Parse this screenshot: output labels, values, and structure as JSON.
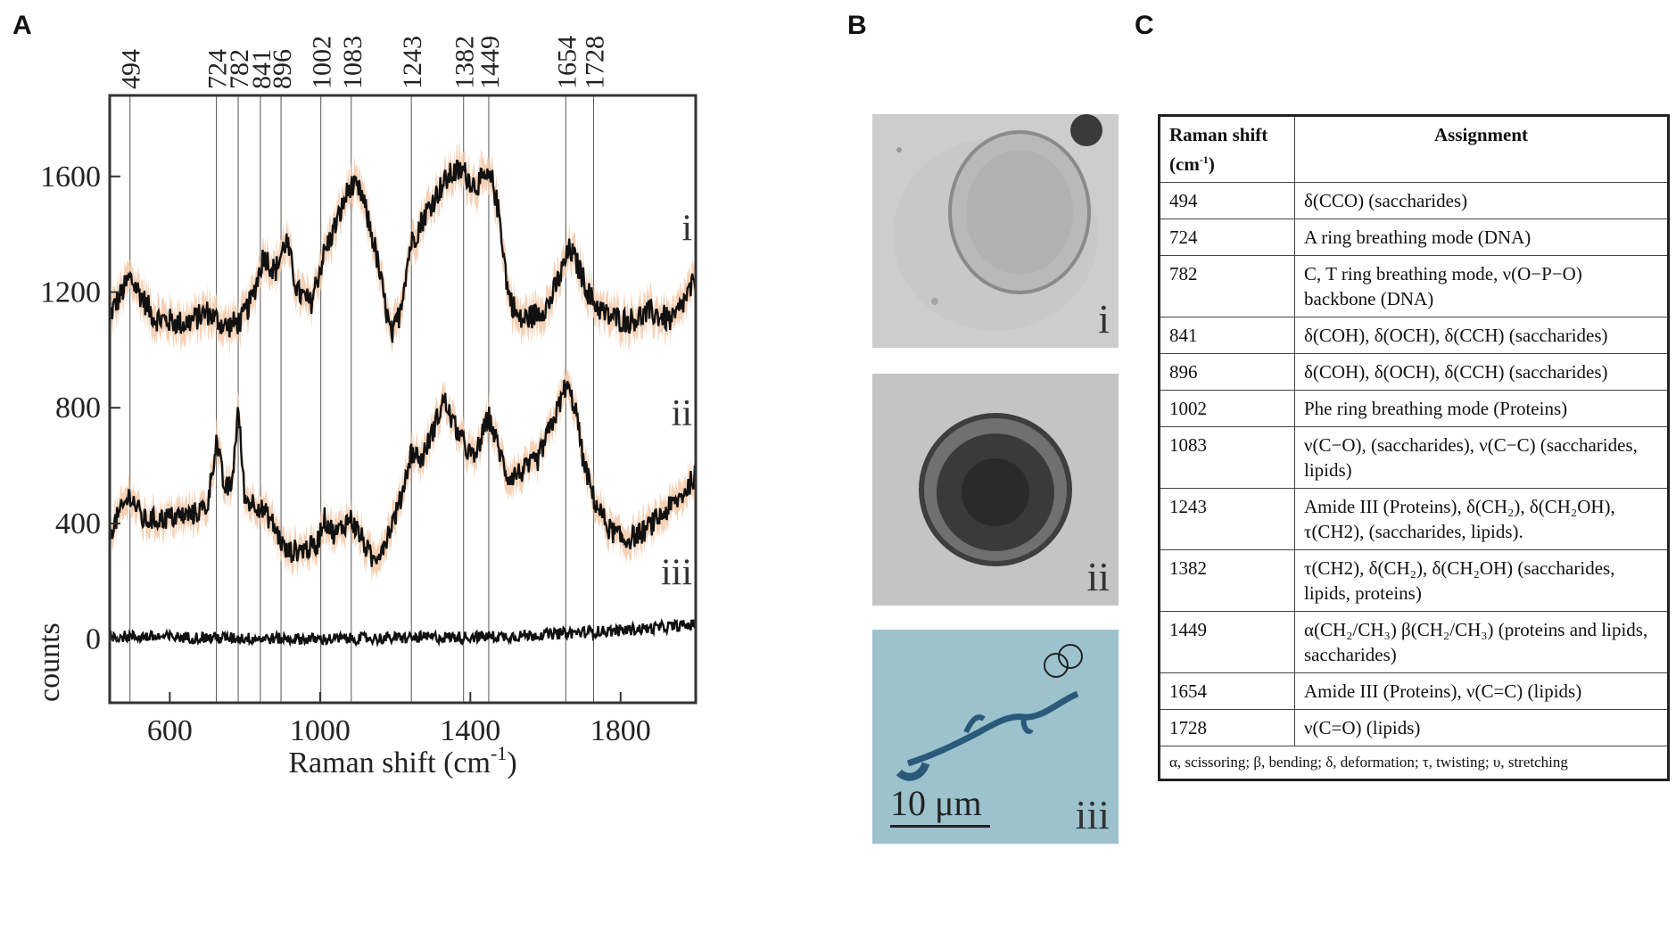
{
  "panels": {
    "a": "A",
    "b": "B",
    "c": "C"
  },
  "chart_data": {
    "type": "line",
    "xlabel": "Raman shift (cm",
    "xlabel_sup": "-1",
    "xlabel_end": ")",
    "ylabel": "counts",
    "xlim": [
      440,
      2000
    ],
    "ylim": [
      -220,
      1880
    ],
    "xticks": [
      600,
      1000,
      1400,
      1800
    ],
    "yticks": [
      0,
      400,
      800,
      1200,
      1600
    ],
    "peak_lines": [
      494,
      724,
      782,
      841,
      896,
      1002,
      1083,
      1243,
      1382,
      1449,
      1654,
      1728
    ],
    "series": [
      {
        "name": "i",
        "label": "i",
        "noise": 45,
        "band": true,
        "points": [
          [
            440,
            1120
          ],
          [
            494,
            1250
          ],
          [
            560,
            1110
          ],
          [
            640,
            1090
          ],
          [
            700,
            1130
          ],
          [
            750,
            1080
          ],
          [
            790,
            1100
          ],
          [
            820,
            1180
          ],
          [
            850,
            1330
          ],
          [
            880,
            1270
          ],
          [
            910,
            1380
          ],
          [
            940,
            1200
          ],
          [
            975,
            1160
          ],
          [
            1010,
            1330
          ],
          [
            1050,
            1460
          ],
          [
            1080,
            1570
          ],
          [
            1110,
            1540
          ],
          [
            1145,
            1360
          ],
          [
            1170,
            1180
          ],
          [
            1190,
            1040
          ],
          [
            1210,
            1120
          ],
          [
            1240,
            1360
          ],
          [
            1280,
            1470
          ],
          [
            1320,
            1560
          ],
          [
            1350,
            1610
          ],
          [
            1380,
            1620
          ],
          [
            1410,
            1570
          ],
          [
            1440,
            1590
          ],
          [
            1460,
            1580
          ],
          [
            1480,
            1440
          ],
          [
            1500,
            1200
          ],
          [
            1530,
            1100
          ],
          [
            1570,
            1120
          ],
          [
            1610,
            1160
          ],
          [
            1640,
            1260
          ],
          [
            1665,
            1350
          ],
          [
            1690,
            1280
          ],
          [
            1720,
            1180
          ],
          [
            1760,
            1120
          ],
          [
            1820,
            1100
          ],
          [
            1880,
            1130
          ],
          [
            1940,
            1100
          ],
          [
            2000,
            1240
          ]
        ]
      },
      {
        "name": "ii",
        "label": "ii",
        "noise": 40,
        "band": true,
        "points": [
          [
            440,
            370
          ],
          [
            494,
            500
          ],
          [
            530,
            410
          ],
          [
            600,
            420
          ],
          [
            660,
            430
          ],
          [
            700,
            460
          ],
          [
            724,
            690
          ],
          [
            745,
            520
          ],
          [
            765,
            530
          ],
          [
            782,
            800
          ],
          [
            800,
            480
          ],
          [
            830,
            470
          ],
          [
            870,
            410
          ],
          [
            910,
            300
          ],
          [
            950,
            310
          ],
          [
            990,
            320
          ],
          [
            1010,
            420
          ],
          [
            1040,
            360
          ],
          [
            1080,
            420
          ],
          [
            1110,
            350
          ],
          [
            1140,
            270
          ],
          [
            1170,
            330
          ],
          [
            1210,
            460
          ],
          [
            1243,
            650
          ],
          [
            1270,
            620
          ],
          [
            1300,
            720
          ],
          [
            1330,
            830
          ],
          [
            1350,
            760
          ],
          [
            1380,
            680
          ],
          [
            1410,
            620
          ],
          [
            1430,
            700
          ],
          [
            1449,
            770
          ],
          [
            1470,
            680
          ],
          [
            1500,
            560
          ],
          [
            1540,
            580
          ],
          [
            1580,
            620
          ],
          [
            1610,
            720
          ],
          [
            1640,
            820
          ],
          [
            1654,
            880
          ],
          [
            1680,
            800
          ],
          [
            1700,
            620
          ],
          [
            1730,
            480
          ],
          [
            1770,
            380
          ],
          [
            1810,
            340
          ],
          [
            1860,
            370
          ],
          [
            1910,
            430
          ],
          [
            1960,
            490
          ],
          [
            2000,
            570
          ]
        ]
      },
      {
        "name": "iii",
        "label": "iii",
        "noise": 20,
        "band": false,
        "points": [
          [
            440,
            10
          ],
          [
            1000,
            0
          ],
          [
            1500,
            10
          ],
          [
            1800,
            30
          ],
          [
            2000,
            50
          ]
        ]
      }
    ]
  },
  "micrographs": [
    {
      "label": "i",
      "bg": "#cfcfcf"
    },
    {
      "label": "ii",
      "bg": "#c3c3c3"
    },
    {
      "label": "iii",
      "bg": "#9ec3cf",
      "scale": "10 μm"
    }
  ],
  "table": {
    "header_shift": "Raman shift",
    "header_unit": "(cm",
    "header_unit_sup": "-1",
    "header_unit_end": ")",
    "header_assign": "Assignment",
    "rows": [
      {
        "shift": "494",
        "assign": "δ(CCO) (saccharides)"
      },
      {
        "shift": "724",
        "assign": "A ring breathing mode (DNA)"
      },
      {
        "shift": "782",
        "assign": "C, T ring breathing mode, ν(O−P−O) backbone (DNA)"
      },
      {
        "shift": "841",
        "assign": "δ(COH), δ(OCH), δ(CCH) (saccharides)"
      },
      {
        "shift": "896",
        "assign": "δ(COH), δ(OCH), δ(CCH) (saccharides)"
      },
      {
        "shift": "1002",
        "assign": "Phe ring breathing mode (Proteins)"
      },
      {
        "shift": "1083",
        "assign": "ν(C−O), (saccharides), ν(C−C) (saccharides, lipids)"
      },
      {
        "shift": "1243",
        "assign": "Amide III (Proteins), δ(CH₂), δ(CH₂OH), τ(CH2), (saccharides, lipids)."
      },
      {
        "shift": "1382",
        "assign": "τ(CH2), δ(CH₂), δ(CH₂OH) (saccharides, lipids, proteins)"
      },
      {
        "shift": "1449",
        "assign": "α(CH₂/CH₃) β(CH₂/CH₃) (proteins and lipids, saccharides)"
      },
      {
        "shift": "1654",
        "assign": "Amide III (Proteins), ν(C=C) (lipids)"
      },
      {
        "shift": "1728",
        "assign": "ν(C=O) (lipids)"
      }
    ],
    "footnote": "α, scissoring; β, bending; δ, deformation; τ, twisting; υ, stretching"
  }
}
